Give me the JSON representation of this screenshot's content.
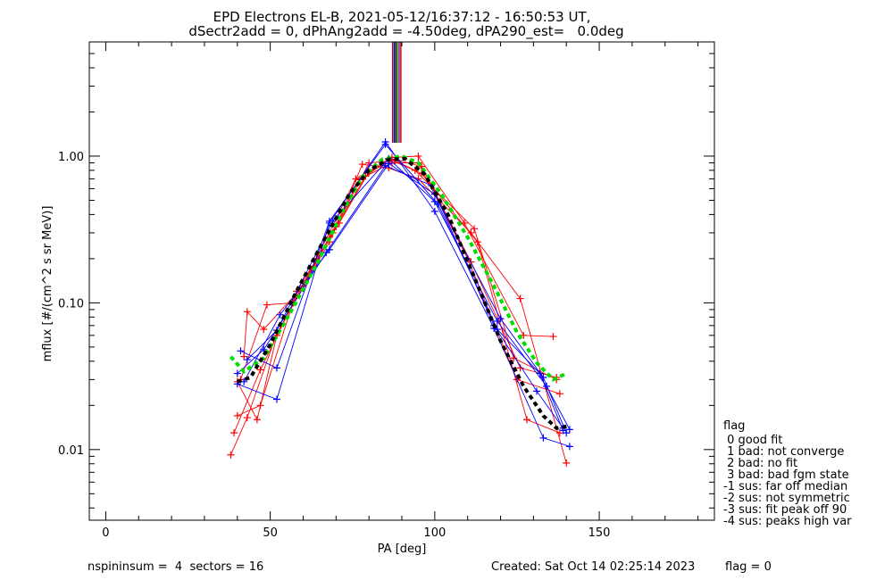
{
  "chart_data": {
    "type": "line",
    "title": "EPD Electrons EL-B, 2021-05-12/16:37:12 - 16:50:53 UT,",
    "subtitle": "dSectr2add = 0, dPhAng2add = -4.50deg, dPA290_est=   0.0deg",
    "xlabel": "PA [deg]",
    "ylabel": "mflux [#/(cm^2 s sr MeV)]",
    "xlim": [
      -5,
      185
    ],
    "ylim": [
      0.0033,
      6.0
    ],
    "yscale": "log",
    "x_ticks": [
      0,
      50,
      100,
      150
    ],
    "y_ticks": [
      {
        "value": 0.01,
        "label": "0.01"
      },
      {
        "value": 0.1,
        "label": "0.10"
      },
      {
        "value": 1.0,
        "label": "1.00"
      }
    ],
    "grid": false,
    "vertical_markers": [
      {
        "x": 87.2,
        "color": "#c00000"
      },
      {
        "x": 87.7,
        "color": "#0000c0"
      },
      {
        "x": 88.2,
        "color": "#000000"
      },
      {
        "x": 88.7,
        "color": "#00a000"
      },
      {
        "x": 89.2,
        "color": "#a000a0"
      },
      {
        "x": 89.7,
        "color": "#c00000"
      }
    ],
    "series": [
      {
        "color": "#ff0000",
        "marker": "plus",
        "points": [
          [
            38,
            0.0092
          ],
          [
            43,
            0.0165
          ],
          [
            52,
            0.062
          ],
          [
            68,
            0.26
          ],
          [
            78,
            0.88
          ],
          [
            86,
            0.83
          ],
          [
            95,
            0.7
          ],
          [
            111,
            0.3
          ],
          [
            126,
            0.107
          ],
          [
            140,
            0.0081
          ]
        ]
      },
      {
        "color": "#ff0000",
        "marker": "plus",
        "points": [
          [
            39,
            0.013
          ],
          [
            47,
            0.035
          ],
          [
            57,
            0.1
          ],
          [
            68,
            0.28
          ],
          [
            77,
            0.69
          ],
          [
            87,
            0.9
          ],
          [
            95,
            0.9
          ],
          [
            110,
            0.2
          ],
          [
            125,
            0.03
          ],
          [
            138,
            0.024
          ]
        ]
      },
      {
        "color": "#ff0000",
        "marker": "plus",
        "points": [
          [
            40,
            0.017
          ],
          [
            47,
            0.02
          ],
          [
            58,
            0.12
          ],
          [
            71,
            0.35
          ],
          [
            80,
            0.78
          ],
          [
            88,
            0.95
          ],
          [
            96,
            0.85
          ],
          [
            111,
            0.19
          ],
          [
            126,
            0.036
          ],
          [
            137,
            0.031
          ]
        ]
      },
      {
        "color": "#ff0000",
        "marker": "plus",
        "points": [
          [
            41,
            0.03
          ],
          [
            49,
            0.097
          ],
          [
            57,
            0.1
          ],
          [
            69,
            0.3
          ],
          [
            80,
            0.9
          ],
          [
            88,
            0.93
          ],
          [
            96,
            0.76
          ],
          [
            113,
            0.26
          ],
          [
            128,
            0.016
          ],
          [
            138,
            0.013
          ]
        ]
      },
      {
        "color": "#ff0000",
        "marker": "plus",
        "points": [
          [
            42,
            0.043
          ],
          [
            43,
            0.087
          ],
          [
            48,
            0.066
          ],
          [
            60,
            0.13
          ],
          [
            70,
            0.33
          ],
          [
            79,
            0.73
          ],
          [
            87,
            0.98
          ],
          [
            95,
            1.0
          ],
          [
            109,
            0.35
          ],
          [
            127,
            0.06
          ],
          [
            136,
            0.059
          ]
        ]
      },
      {
        "color": "#ff0000",
        "marker": "plus",
        "points": [
          [
            40,
            0.029
          ],
          [
            46,
            0.016
          ],
          [
            52,
            0.06
          ],
          [
            64,
            0.2
          ],
          [
            76,
            0.7
          ],
          [
            86,
            0.95
          ],
          [
            94,
            0.8
          ],
          [
            112,
            0.32
          ],
          [
            124,
            0.042
          ],
          [
            137,
            0.03
          ]
        ]
      },
      {
        "color": "#0000ff",
        "marker": "plus",
        "points": [
          [
            40,
            0.028
          ],
          [
            52,
            0.022
          ],
          [
            68,
            0.35
          ],
          [
            85,
            1.25
          ],
          [
            100,
            0.42
          ],
          [
            118,
            0.067
          ],
          [
            133,
            0.012
          ],
          [
            141,
            0.0105
          ]
        ]
      },
      {
        "color": "#0000ff",
        "marker": "plus",
        "points": [
          [
            41,
            0.047
          ],
          [
            52,
            0.036
          ],
          [
            68,
            0.36
          ],
          [
            85,
            1.2
          ],
          [
            101,
            0.47
          ],
          [
            119,
            0.066
          ],
          [
            132,
            0.033
          ],
          [
            139,
            0.0135
          ]
        ]
      },
      {
        "color": "#0000ff",
        "marker": "plus",
        "points": [
          [
            42,
            0.029
          ],
          [
            53,
            0.083
          ],
          [
            68,
            0.23
          ],
          [
            86,
            0.89
          ],
          [
            100,
            0.55
          ],
          [
            120,
            0.078
          ],
          [
            133,
            0.031
          ],
          [
            140,
            0.013
          ]
        ]
      },
      {
        "color": "#0000ff",
        "marker": "plus",
        "points": [
          [
            40,
            0.033
          ],
          [
            48,
            0.048
          ],
          [
            67,
            0.22
          ],
          [
            85,
            0.86
          ],
          [
            99,
            0.63
          ],
          [
            118,
            0.07
          ],
          [
            131,
            0.025
          ],
          [
            139,
            0.014
          ]
        ]
      },
      {
        "color": "#0000ff",
        "marker": "plus",
        "points": [
          [
            43,
            0.041
          ],
          [
            52,
            0.065
          ],
          [
            69,
            0.36
          ],
          [
            86,
            0.96
          ],
          [
            100,
            0.49
          ],
          [
            119,
            0.075
          ],
          [
            134,
            0.027
          ],
          [
            141,
            0.0137
          ]
        ]
      },
      {
        "color": "#00dd00",
        "marker": "dash",
        "points": [
          [
            38,
            0.043
          ],
          [
            42,
            0.034
          ],
          [
            48,
            0.042
          ],
          [
            56,
            0.085
          ],
          [
            65,
            0.2
          ],
          [
            72,
            0.42
          ],
          [
            78,
            0.72
          ],
          [
            84,
            0.95
          ],
          [
            90,
            1.0
          ],
          [
            95,
            0.9
          ],
          [
            102,
            0.55
          ],
          [
            110,
            0.28
          ],
          [
            118,
            0.13
          ],
          [
            125,
            0.063
          ],
          [
            131,
            0.039
          ],
          [
            136,
            0.03
          ],
          [
            140,
            0.033
          ]
        ]
      },
      {
        "color": "#000000",
        "marker": "dash",
        "points": [
          [
            40,
            0.029
          ],
          [
            44,
            0.031
          ],
          [
            50,
            0.052
          ],
          [
            58,
            0.12
          ],
          [
            66,
            0.26
          ],
          [
            74,
            0.55
          ],
          [
            80,
            0.8
          ],
          [
            86,
            0.95
          ],
          [
            91,
            0.96
          ],
          [
            97,
            0.75
          ],
          [
            104,
            0.4
          ],
          [
            112,
            0.15
          ],
          [
            120,
            0.055
          ],
          [
            127,
            0.027
          ],
          [
            133,
            0.017
          ],
          [
            137,
            0.014
          ],
          [
            141,
            0.0145
          ]
        ]
      }
    ]
  },
  "legend": {
    "heading": "flag",
    "items": [
      " 0 good fit",
      " 1 bad: not converge",
      " 2 bad: no fit",
      " 3 bad: bad fgm state",
      "-1 sus: far off median",
      "-2 sus: not symmetric",
      "-3 sus: fit peak off 90",
      "-4 sus: peaks high var"
    ]
  },
  "footer": {
    "left": "nspininsum =  4  sectors = 16",
    "created": "Created: Sat Oct 14 02:25:14 2023",
    "flag": "flag = 0"
  }
}
